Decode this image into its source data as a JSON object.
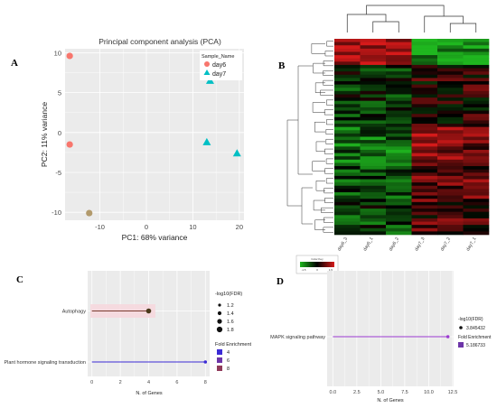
{
  "panels": {
    "a": "A",
    "b": "B",
    "c": "C",
    "d": "D"
  },
  "chart_data": [
    {
      "id": "pca",
      "type": "scatter",
      "title": "Principal component analysis (PCA)",
      "xlabel": "PC1: 68% variance",
      "ylabel": "PC2: 11% variance",
      "xlim": [
        -17.5,
        21
      ],
      "ylim": [
        -11,
        10.5
      ],
      "xticks": [
        -10,
        0,
        10,
        20
      ],
      "yticks": [
        -10,
        -5,
        0,
        5,
        10
      ],
      "grid": true,
      "legend": {
        "title": "Sample_Name",
        "placement": "top-right"
      },
      "series": [
        {
          "name": "day6",
          "marker": "circle",
          "color": "#f8766d",
          "points": [
            [
              -16.5,
              9.6
            ],
            [
              -16.5,
              -1.5
            ],
            [
              -12.3,
              -10.1
            ]
          ]
        },
        {
          "name": "day7",
          "marker": "triangle",
          "color": "#00bfc4",
          "points": [
            [
              13.7,
              6.5
            ],
            [
              13.0,
              -1.2
            ],
            [
              19.5,
              -2.6
            ]
          ]
        }
      ]
    },
    {
      "id": "heatmap",
      "type": "heatmap",
      "columns": [
        "day6_3",
        "day6_1",
        "day6_2",
        "day7_3",
        "day7_2",
        "day7_1"
      ],
      "color_scale": {
        "low": "#1fb71f",
        "mid": "#000000",
        "high": "#d61a1a"
      },
      "legend": {
        "title": "Color Key",
        "ticks": [
          "-1.5",
          "0",
          "1.5"
        ]
      }
    },
    {
      "id": "kegg_c",
      "type": "lollipop",
      "categories": [
        "Autophagy",
        "Plant hormone signaling transduction"
      ],
      "values": [
        4,
        8
      ],
      "xlabel": "N. of Genes",
      "xlim": [
        -0.3,
        8.3
      ],
      "xticks": [
        0,
        2,
        4,
        6,
        8
      ],
      "colors": [
        "#7a3b2e",
        "#3b2bd6"
      ],
      "legend": {
        "size_title": "-log10(FDR)",
        "sizes": [
          "1.2",
          "1.4",
          "1.6",
          "1.8"
        ],
        "fill_title": "Fold Enrichment",
        "fills": [
          {
            "label": "4",
            "color": "#3b2bd6"
          },
          {
            "label": "6",
            "color": "#6d35a8"
          },
          {
            "label": "8",
            "color": "#8f3a5a"
          }
        ]
      }
    },
    {
      "id": "kegg_d",
      "type": "lollipop",
      "categories": [
        "MAPK signaling pathway"
      ],
      "values": [
        12
      ],
      "xlabel": "N. of Genes",
      "xlim": [
        -0.6,
        12.6
      ],
      "xticks": [
        "0.0",
        "2.5",
        "5.0",
        "7.5",
        "10.0",
        "12.5"
      ],
      "colors": [
        "#9b3ad1"
      ],
      "legend": {
        "size_title": "-log10(FDR)",
        "sizes": [
          "3.845432"
        ],
        "fill_title": "Fold Enrichment",
        "fills": [
          {
            "label": "5.186733",
            "color": "#6d35a8"
          }
        ]
      }
    }
  ]
}
